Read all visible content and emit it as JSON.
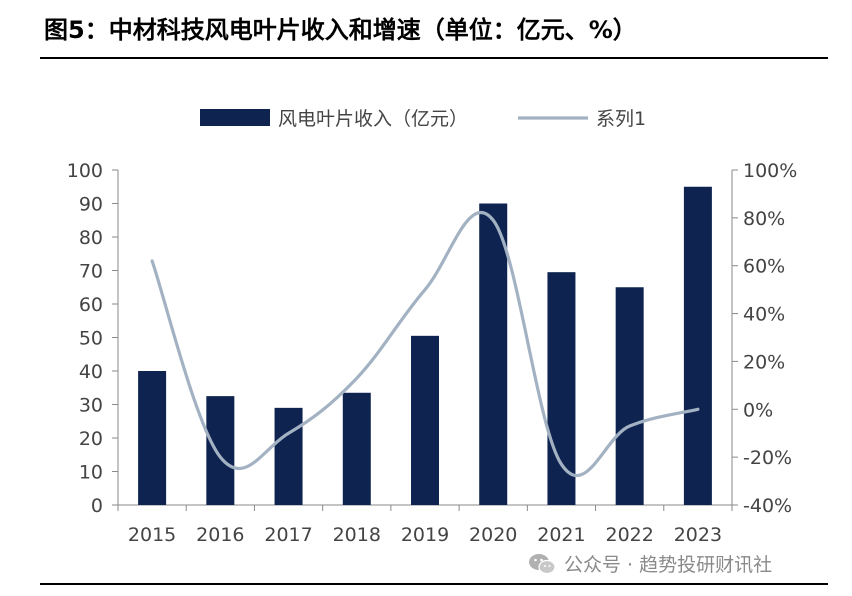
{
  "title": "图5：中材科技风电叶片收入和增速（单位：亿元、%）",
  "watermark": "公众号 · 趋势投研财讯社",
  "chart_data": {
    "type": "bar+line",
    "categories": [
      "2015",
      "2016",
      "2017",
      "2018",
      "2019",
      "2020",
      "2021",
      "2022",
      "2023"
    ],
    "series": [
      {
        "name": "风电叶片收入（亿元）",
        "type": "bar",
        "axis": "left",
        "values": [
          40,
          32.5,
          29,
          33.5,
          50.5,
          90,
          69.5,
          65,
          95
        ],
        "color": "#0e2350"
      },
      {
        "name": "系列1",
        "type": "line",
        "axis": "right",
        "values": [
          62,
          -20,
          -10,
          13,
          50,
          79,
          -23,
          -7,
          0
        ],
        "color": "#a3b2c3"
      }
    ],
    "y_left": {
      "min": 0,
      "max": 100,
      "step": 10,
      "ticks": [
        "0",
        "10",
        "20",
        "30",
        "40",
        "50",
        "60",
        "70",
        "80",
        "90",
        "100"
      ]
    },
    "y_right": {
      "min": -40,
      "max": 100,
      "step": 20,
      "ticks": [
        "-40%",
        "-20%",
        "0%",
        "20%",
        "40%",
        "60%",
        "80%",
        "100%"
      ]
    },
    "legend_position": "top-center",
    "grid": false
  }
}
